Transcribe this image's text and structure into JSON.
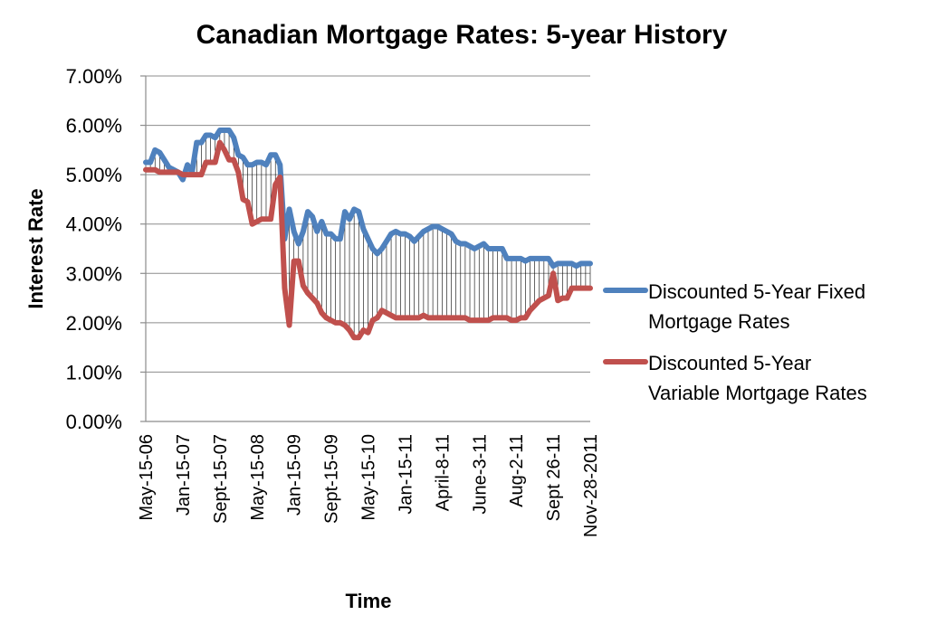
{
  "chart_data": {
    "type": "line",
    "title": "Canadian Mortgage Rates: 5-year History",
    "xlabel": "Time",
    "ylabel": "Interest Rate",
    "ylim": [
      0,
      7
    ],
    "y_ticks": [
      "0.00%",
      "1.00%",
      "2.00%",
      "3.00%",
      "4.00%",
      "5.00%",
      "6.00%",
      "7.00%"
    ],
    "x_tick_labels": [
      "May-15-06",
      "Jan-15-07",
      "Sept-15-07",
      "May-15-08",
      "Jan-15-09",
      "Sept-15-09",
      "May-15-10",
      "Jan-15-11",
      "April-8-11",
      "June-3-11",
      "Aug-2-11",
      "Sept 26-11",
      "Nov-28-2011"
    ],
    "x_tick_positions": [
      0,
      8,
      16,
      24,
      32,
      40,
      48,
      56,
      64,
      72,
      80,
      88,
      96
    ],
    "grid": "horizontal",
    "drop_lines": true,
    "legend_position": "right",
    "series": [
      {
        "name": "Discounted 5-Year Fixed Mortgage Rates",
        "color": "#4f81bd",
        "values": [
          5.25,
          5.25,
          5.5,
          5.45,
          5.3,
          5.15,
          5.1,
          5.05,
          4.9,
          5.2,
          5.05,
          5.65,
          5.65,
          5.8,
          5.8,
          5.75,
          5.9,
          5.9,
          5.9,
          5.75,
          5.4,
          5.35,
          5.2,
          5.2,
          5.25,
          5.25,
          5.2,
          5.4,
          5.4,
          5.2,
          3.7,
          4.3,
          3.85,
          3.6,
          3.85,
          4.25,
          4.15,
          3.85,
          4.05,
          3.8,
          3.8,
          3.7,
          3.7,
          4.25,
          4.1,
          4.3,
          4.25,
          3.9,
          3.7,
          3.5,
          3.4,
          3.5,
          3.65,
          3.8,
          3.85,
          3.8,
          3.8,
          3.75,
          3.65,
          3.75,
          3.85,
          3.9,
          3.95,
          3.95,
          3.9,
          3.85,
          3.8,
          3.65,
          3.6,
          3.6,
          3.55,
          3.5,
          3.55,
          3.6,
          3.5,
          3.5,
          3.5,
          3.5,
          3.3,
          3.3,
          3.3,
          3.3,
          3.25,
          3.3,
          3.3,
          3.3,
          3.3,
          3.3,
          3.15,
          3.2,
          3.2,
          3.2,
          3.2,
          3.15,
          3.2,
          3.2,
          3.2
        ]
      },
      {
        "name": "Discounted 5-Year Variable Mortgage Rates",
        "color": "#c0504d",
        "values": [
          5.1,
          5.1,
          5.1,
          5.05,
          5.05,
          5.05,
          5.05,
          5.05,
          5.0,
          5.0,
          5.0,
          5.0,
          5.0,
          5.25,
          5.25,
          5.25,
          5.65,
          5.5,
          5.3,
          5.3,
          5.05,
          4.5,
          4.45,
          4.0,
          4.05,
          4.1,
          4.1,
          4.1,
          4.8,
          4.95,
          2.7,
          1.95,
          3.25,
          3.25,
          2.75,
          2.6,
          2.5,
          2.4,
          2.2,
          2.1,
          2.05,
          2.0,
          2.0,
          1.95,
          1.85,
          1.7,
          1.7,
          1.85,
          1.8,
          2.05,
          2.1,
          2.25,
          2.2,
          2.15,
          2.1,
          2.1,
          2.1,
          2.1,
          2.1,
          2.1,
          2.15,
          2.1,
          2.1,
          2.1,
          2.1,
          2.1,
          2.1,
          2.1,
          2.1,
          2.1,
          2.05,
          2.05,
          2.05,
          2.05,
          2.05,
          2.1,
          2.1,
          2.1,
          2.1,
          2.05,
          2.05,
          2.1,
          2.1,
          2.25,
          2.35,
          2.45,
          2.5,
          2.55,
          3.0,
          2.45,
          2.5,
          2.5,
          2.7,
          2.7,
          2.7,
          2.7,
          2.7
        ]
      }
    ]
  }
}
